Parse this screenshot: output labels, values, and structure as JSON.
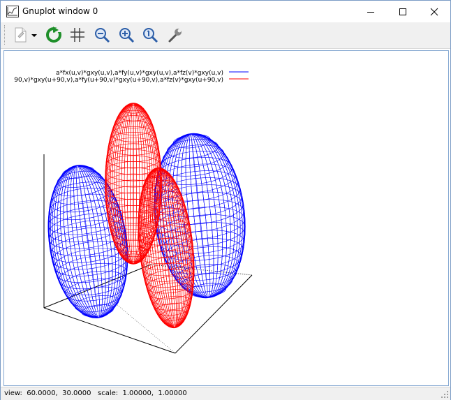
{
  "window": {
    "title": "Gnuplot window 0"
  },
  "toolbar": {
    "buttons": [
      {
        "name": "copy-print-menu",
        "icon": "document-icon"
      },
      {
        "name": "dropdown",
        "icon": "dropdown-arrow-icon"
      },
      {
        "name": "replot",
        "icon": "refresh-icon"
      },
      {
        "name": "toggle-grid",
        "icon": "grid-icon"
      },
      {
        "name": "zoom-previous",
        "icon": "zoom-out-icon"
      },
      {
        "name": "zoom-next",
        "icon": "zoom-in-icon"
      },
      {
        "name": "autoscale",
        "icon": "zoom-reset-icon"
      },
      {
        "name": "options",
        "icon": "wrench-icon"
      }
    ]
  },
  "plot": {
    "legend": [
      {
        "label": "a*fx(u,v)*gxy(u,v),a*fy(u,v)*gxy(u,v),a*fz(v)*gxy(u,v)",
        "color": "#0000ff"
      },
      {
        "label": "90,v)*gxy(u+90,v),a*fy(u+90,v)*gxy(u+90,v),a*fz(v)*gxy(u+90,v)",
        "color": "#ff0000"
      }
    ],
    "colors": {
      "series1": "#0000ff",
      "series2": "#ff0000",
      "axes": "#000000"
    }
  },
  "status": {
    "text": "view:  60.0000,  30.0000   scale:  1.00000,  1.00000"
  }
}
